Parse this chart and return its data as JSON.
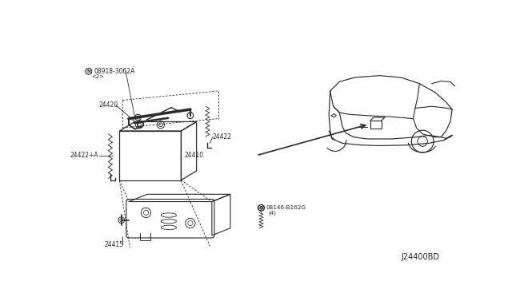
{
  "bg_color": "#ffffff",
  "line_color": "#2a2a2a",
  "fig_width": 6.4,
  "fig_height": 3.72,
  "diagram_code": "J24400BD",
  "parts": {
    "nut": {
      "label": "N08918-3062A",
      "sub": "<2>"
    },
    "cable_bracket": {
      "label": "24420"
    },
    "hold_down": {
      "label": "24422"
    },
    "cable_neg": {
      "label": "24422+A"
    },
    "battery": {
      "label": "24410"
    },
    "tray": {
      "label": "24415"
    },
    "bolt": {
      "label": "B08146-B162G",
      "sub": "(4)"
    }
  }
}
